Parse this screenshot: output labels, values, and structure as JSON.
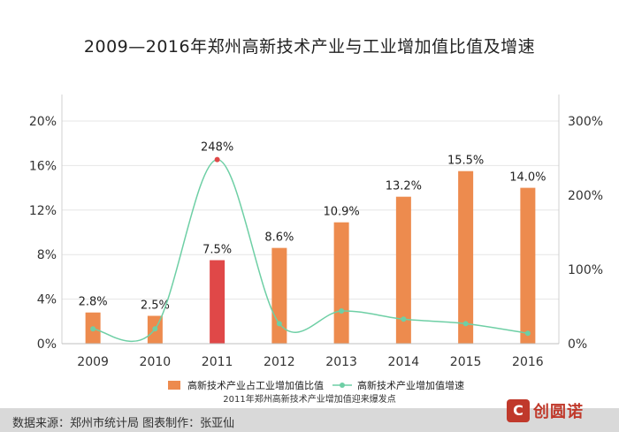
{
  "title": "2009—2016年郑州高新技术产业与工业增加值比值及增速",
  "chart_data": {
    "type": "bar",
    "categories": [
      "2009",
      "2010",
      "2011",
      "2012",
      "2013",
      "2014",
      "2015",
      "2016"
    ],
    "series": [
      {
        "name": "高新技术产业占工业增加值比值",
        "type": "bar",
        "axis": "left",
        "values": [
          2.8,
          2.5,
          7.5,
          8.6,
          10.9,
          13.2,
          15.5,
          14.0
        ],
        "labels": [
          "2.8%",
          "2.5%",
          "7.5%",
          "8.6%",
          "10.9%",
          "13.2%",
          "15.5%",
          "14.0%"
        ],
        "color": "#ed8b4e",
        "highlight_index": 2,
        "highlight_color": "#e04848"
      },
      {
        "name": "高新技术产业增加值增速",
        "type": "line",
        "axis": "right",
        "values": [
          20,
          20,
          248,
          27,
          44,
          33,
          27,
          14
        ],
        "point_labels": {
          "2": "248%"
        },
        "color": "#6ecfa5",
        "highlight_color": "#e04848"
      }
    ],
    "y_left": {
      "ticks": [
        "0%",
        "4%",
        "8%",
        "12%",
        "16%",
        "20%"
      ],
      "tick_values": [
        0,
        4,
        8,
        12,
        16,
        20
      ],
      "ylim": [
        0,
        20
      ]
    },
    "y_right": {
      "ticks": [
        "0%",
        "100%",
        "200%",
        "300%"
      ],
      "tick_values": [
        0,
        100,
        200,
        300
      ],
      "ylim": [
        0,
        300
      ]
    },
    "legend_position": "bottom",
    "note": "2011年郑州高新技术产业增加值迎来爆发点"
  },
  "footer": {
    "source": "数据来源：郑州市统计局  图表制作：张亚仙",
    "logo_text": "创圆诺"
  },
  "colors": {
    "bar": "#ed8b4e",
    "highlight": "#e04848",
    "line": "#6ecfa5",
    "footer": "#d9d9d9"
  }
}
